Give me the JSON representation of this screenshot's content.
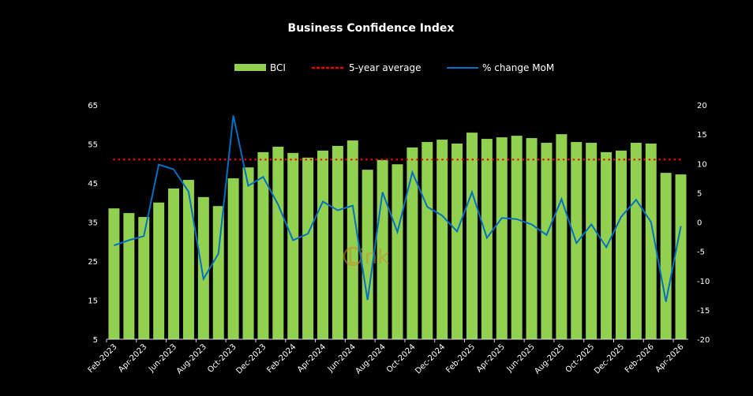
{
  "chart_data": {
    "type": "bar",
    "title": "Business Confidence Index",
    "categories": [
      "Feb-2023",
      "Mar-2023",
      "Apr-2023",
      "May-2023",
      "Jun-2023",
      "Jul-2023",
      "Aug-2023",
      "Sep-2023",
      "Oct-2023",
      "Nov-2023",
      "Dec-2023",
      "Jan-2024",
      "Feb-2024",
      "Mar-2024",
      "Apr-2024",
      "May-2024",
      "Jun-2024",
      "Jul-2024",
      "Aug-2024",
      "Sep-2024",
      "Oct-2024",
      "Nov-2024",
      "Dec-2024",
      "Jan-2025",
      "Feb-2025",
      "Mar-2025",
      "Apr-2025",
      "May-2025",
      "Jun-2025",
      "Jul-2025",
      "Aug-2025",
      "Sep-2025",
      "Oct-2025",
      "Nov-2025",
      "Dec-2025",
      "Jan-2026",
      "Feb-2026",
      "Mar-2026",
      "Apr-2026"
    ],
    "x_tick_labels": [
      "Feb-2023",
      "Apr-2023",
      "Jun-2023",
      "Aug-2023",
      "Oct-2023",
      "Dec-2023",
      "Feb-2024",
      "Apr-2024",
      "Jun-2024",
      "Aug-2024",
      "Oct-2024",
      "Dec-2024",
      "Feb-2025",
      "Apr-2025",
      "Jun-2025",
      "Aug-2025",
      "Oct-2025",
      "Dec-2025",
      "Feb-2026",
      "Apr-2026"
    ],
    "series": [
      {
        "name": "BCI",
        "type": "bar",
        "axis": "left",
        "color": "#92d050",
        "values": [
          38.5,
          37.3,
          36.3,
          40.0,
          43.6,
          45.8,
          41.4,
          39.1,
          46.2,
          49.0,
          52.9,
          54.3,
          52.7,
          51.5,
          53.3,
          54.5,
          55.9,
          48.4,
          50.9,
          49.8,
          54.1,
          55.5,
          56.1,
          55.1,
          57.9,
          56.3,
          56.7,
          57.1,
          56.5,
          55.3,
          57.5,
          55.5,
          55.3,
          52.9,
          53.3,
          55.3,
          55.1,
          47.6,
          47.2
        ]
      },
      {
        "name": "5-year average",
        "type": "line-dotted",
        "axis": "left",
        "color": "#ff0000",
        "value": 51
      },
      {
        "name": "% change MoM",
        "type": "line",
        "axis": "right",
        "color": "#0070c0",
        "values": [
          -4.0,
          -3.1,
          -2.4,
          9.8,
          9.0,
          5.2,
          -9.7,
          -5.4,
          18.2,
          6.2,
          7.7,
          3.0,
          -3.1,
          -2.0,
          3.5,
          2.0,
          2.8,
          -13.3,
          5.1,
          -1.7,
          8.5,
          2.6,
          1.1,
          -1.6,
          5.1,
          -2.7,
          0.7,
          0.5,
          -0.4,
          -2.2,
          3.9,
          -3.6,
          -0.4,
          -4.3,
          0.9,
          3.8,
          0.0,
          -13.6,
          -0.7
        ]
      }
    ],
    "y_left": {
      "min": 5,
      "max": 65,
      "ticks": [
        "5",
        "15",
        "25",
        "35",
        "45",
        "55",
        "65"
      ]
    },
    "y_right": {
      "min": -20,
      "max": 20,
      "ticks": [
        "-20",
        "-15",
        "-10",
        "-5",
        "0",
        "5",
        "10",
        "15",
        "20"
      ]
    },
    "legend": {
      "position": "top",
      "items": [
        "BCI",
        "5-year average",
        "% change MoM"
      ]
    },
    "grid": false,
    "watermark": "Link"
  }
}
